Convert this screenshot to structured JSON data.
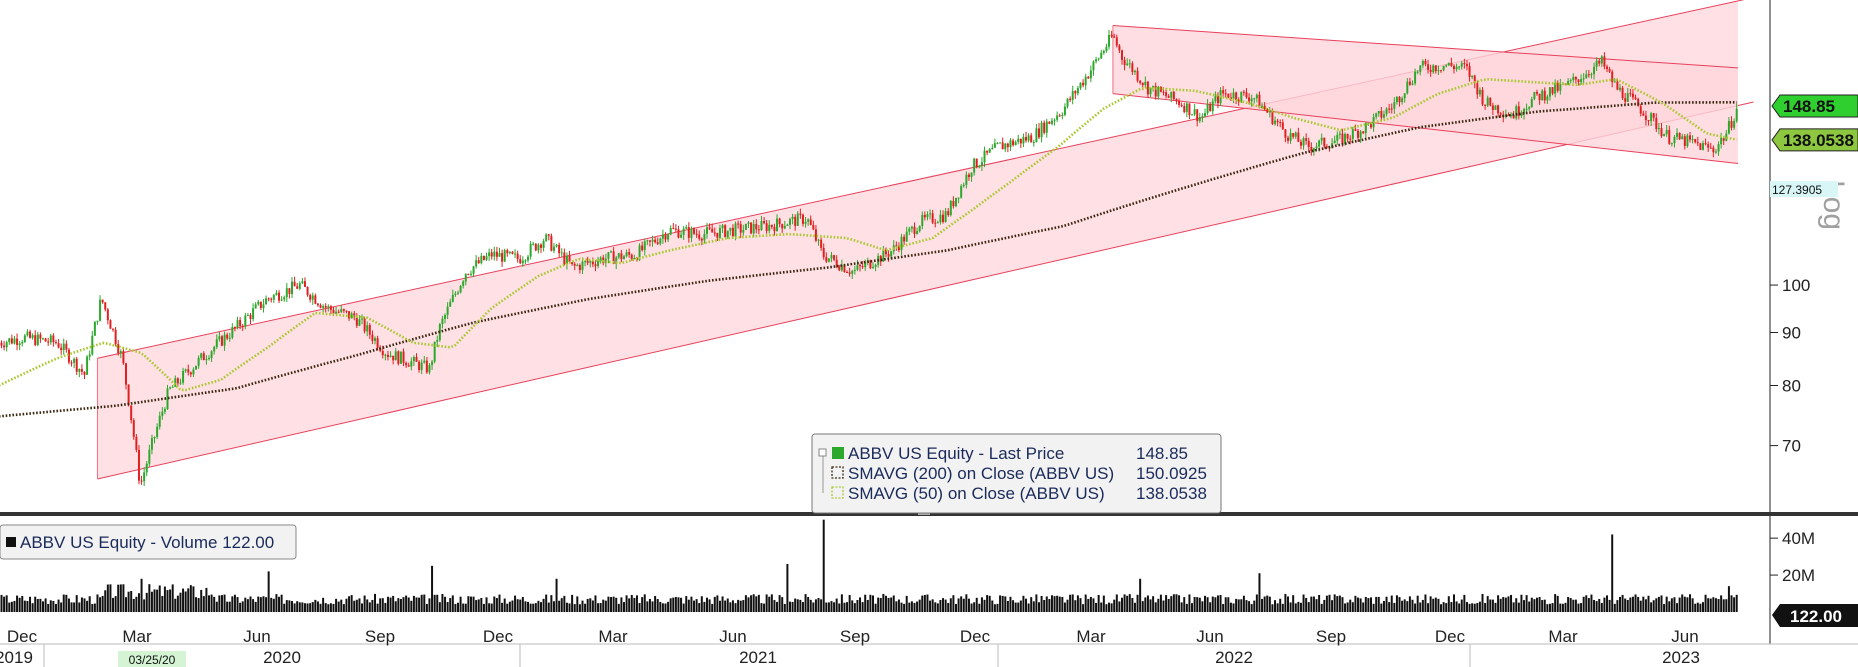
{
  "chart_data": {
    "type": "candlestick",
    "security": "ABBV US Equity",
    "scale": "Log",
    "y_ticks": [
      70,
      80,
      90,
      100
    ],
    "ylim": [
      62,
      185
    ],
    "x_month_labels": [
      "Dec",
      "Mar",
      "Jun",
      "Sep",
      "Dec",
      "Mar",
      "Jun",
      "Sep",
      "Dec",
      "Mar",
      "Jun",
      "Sep",
      "Dec",
      "Mar",
      "Jun"
    ],
    "x_year_labels": [
      "2019",
      "2020",
      "2021",
      "2022",
      "2023"
    ],
    "x_date_marker": "03/25/20",
    "price_path": [
      [
        "2019-12-01",
        88
      ],
      [
        "2019-12-20",
        89
      ],
      [
        "2020-01-15",
        88
      ],
      [
        "2020-02-05",
        82
      ],
      [
        "2020-02-18",
        97
      ],
      [
        "2020-03-05",
        85
      ],
      [
        "2020-03-19",
        64
      ],
      [
        "2020-04-10",
        79
      ],
      [
        "2020-05-01",
        84
      ],
      [
        "2020-06-01",
        91
      ],
      [
        "2020-06-25",
        97
      ],
      [
        "2020-07-20",
        100
      ],
      [
        "2020-08-10",
        95
      ],
      [
        "2020-09-01",
        93
      ],
      [
        "2020-09-25",
        86
      ],
      [
        "2020-10-28",
        83
      ],
      [
        "2020-11-05",
        91
      ],
      [
        "2020-11-25",
        103
      ],
      [
        "2020-12-15",
        107
      ],
      [
        "2021-01-05",
        106
      ],
      [
        "2021-01-25",
        111
      ],
      [
        "2021-02-15",
        104
      ],
      [
        "2021-03-10",
        106
      ],
      [
        "2021-04-05",
        107
      ],
      [
        "2021-05-01",
        113
      ],
      [
        "2021-05-25",
        112
      ],
      [
        "2021-06-20",
        113
      ],
      [
        "2021-07-15",
        114
      ],
      [
        "2021-08-15",
        116
      ],
      [
        "2021-08-27",
        107
      ],
      [
        "2021-09-20",
        103
      ],
      [
        "2021-10-20",
        108
      ],
      [
        "2021-11-10",
        115
      ],
      [
        "2021-12-01",
        117
      ],
      [
        "2021-12-20",
        130
      ],
      [
        "2022-01-10",
        136
      ],
      [
        "2022-02-05",
        139
      ],
      [
        "2022-03-01",
        148
      ],
      [
        "2022-03-20",
        160
      ],
      [
        "2022-04-08",
        174
      ],
      [
        "2022-04-15",
        166
      ],
      [
        "2022-05-05",
        155
      ],
      [
        "2022-05-30",
        150
      ],
      [
        "2022-06-15",
        145
      ],
      [
        "2022-07-01",
        153
      ],
      [
        "2022-07-25",
        152
      ],
      [
        "2022-08-20",
        140
      ],
      [
        "2022-09-05",
        136
      ],
      [
        "2022-09-30",
        138
      ],
      [
        "2022-10-20",
        142
      ],
      [
        "2022-11-10",
        149
      ],
      [
        "2022-11-30",
        162
      ],
      [
        "2022-12-20",
        163
      ],
      [
        "2023-01-05",
        162
      ],
      [
        "2023-01-20",
        150
      ],
      [
        "2023-02-10",
        146
      ],
      [
        "2023-03-01",
        152
      ],
      [
        "2023-03-25",
        156
      ],
      [
        "2023-04-20",
        164
      ],
      [
        "2023-05-01",
        155
      ],
      [
        "2023-05-20",
        148
      ],
      [
        "2023-06-10",
        139
      ],
      [
        "2023-06-30",
        137
      ],
      [
        "2023-07-15",
        135
      ],
      [
        "2023-07-25",
        140
      ],
      [
        "2023-08-03",
        148.85
      ]
    ],
    "sma200_path": [
      [
        "2019-12-01",
        74.7
      ],
      [
        "2020-03-01",
        76.5
      ],
      [
        "2020-06-01",
        79.5
      ],
      [
        "2020-09-01",
        85.5
      ],
      [
        "2020-12-01",
        92
      ],
      [
        "2021-03-01",
        97
      ],
      [
        "2021-06-01",
        101
      ],
      [
        "2021-09-01",
        104
      ],
      [
        "2021-12-01",
        108
      ],
      [
        "2022-03-01",
        114
      ],
      [
        "2022-06-01",
        124
      ],
      [
        "2022-09-01",
        134
      ],
      [
        "2022-12-01",
        142
      ],
      [
        "2023-03-01",
        147
      ],
      [
        "2023-06-01",
        150
      ],
      [
        "2023-08-03",
        150.0925
      ]
    ],
    "sma50_path": [
      [
        "2019-12-01",
        80
      ],
      [
        "2020-01-15",
        85
      ],
      [
        "2020-02-20",
        88
      ],
      [
        "2020-03-20",
        86
      ],
      [
        "2020-04-20",
        79
      ],
      [
        "2020-05-20",
        81
      ],
      [
        "2020-06-25",
        87
      ],
      [
        "2020-08-01",
        94
      ],
      [
        "2020-09-10",
        93
      ],
      [
        "2020-10-15",
        88
      ],
      [
        "2020-11-15",
        87
      ],
      [
        "2020-12-15",
        95
      ],
      [
        "2021-01-20",
        102
      ],
      [
        "2021-02-20",
        106
      ],
      [
        "2021-03-25",
        105
      ],
      [
        "2021-05-01",
        108
      ],
      [
        "2021-06-15",
        111
      ],
      [
        "2021-08-01",
        112
      ],
      [
        "2021-09-15",
        111
      ],
      [
        "2021-10-15",
        108
      ],
      [
        "2021-11-20",
        111
      ],
      [
        "2021-12-20",
        118
      ],
      [
        "2022-01-20",
        126
      ],
      [
        "2022-02-25",
        136
      ],
      [
        "2022-04-01",
        148
      ],
      [
        "2022-05-01",
        155
      ],
      [
        "2022-06-10",
        154
      ],
      [
        "2022-07-20",
        150
      ],
      [
        "2022-08-25",
        145
      ],
      [
        "2022-10-01",
        141
      ],
      [
        "2022-11-10",
        145
      ],
      [
        "2022-12-15",
        153
      ],
      [
        "2023-01-20",
        158
      ],
      [
        "2023-02-25",
        157
      ],
      [
        "2023-04-01",
        156
      ],
      [
        "2023-05-01",
        158
      ],
      [
        "2023-06-05",
        150
      ],
      [
        "2023-07-10",
        140
      ],
      [
        "2023-08-03",
        138.0538
      ]
    ],
    "channels": [
      {
        "name": "uptrend",
        "start": "2020-02-15",
        "end": "2023-08-03",
        "extend_to": "2023-08-15",
        "lower": [
          65,
          149
        ],
        "upper": [
          85,
          188
        ]
      },
      {
        "name": "downtrend",
        "start": "2022-04-08",
        "end": "2023-08-03",
        "lower": [
          153,
          131
        ],
        "upper": [
          178,
          162
        ]
      }
    ],
    "legend": {
      "title": "ABBV US Equity - Last Price",
      "last_price": "148.85",
      "sma200_label": "SMAVG (200)  on Close (ABBV US)",
      "sma200_value": "150.0925",
      "sma50_label": "SMAVG (50)  on Close (ABBV US)",
      "sma50_value": "138.0538"
    },
    "price_tags": {
      "last": "148.85",
      "sma50": "138.0538",
      "lower_channel": "127.3905"
    },
    "volume": {
      "label": "ABBV US Equity - Volume 122.00",
      "last_tag": "122.00",
      "y_ticks": [
        "40M",
        "20M"
      ],
      "y_tick_values": [
        40,
        20
      ],
      "ylim": [
        0,
        52
      ],
      "spikes": [
        [
          "2021-08-27",
          50
        ],
        [
          "2023-04-28",
          42
        ],
        [
          "2020-03-20",
          18
        ],
        [
          "2020-06-25",
          22
        ],
        [
          "2020-10-30",
          25
        ],
        [
          "2021-02-02",
          18
        ],
        [
          "2021-07-30",
          26
        ],
        [
          "2022-04-29",
          18
        ],
        [
          "2022-07-29",
          21
        ],
        [
          "2023-07-27",
          14
        ]
      ]
    },
    "colors": {
      "up": "#2ca82c",
      "down": "#e02020",
      "sma200": "#3a2810",
      "sma50": "#a8c830",
      "channel_fill": "#ffd6dc",
      "channel_line": "#f07080",
      "tag_green": "#2fcf2f",
      "tag_lime": "#8dc63f"
    }
  }
}
